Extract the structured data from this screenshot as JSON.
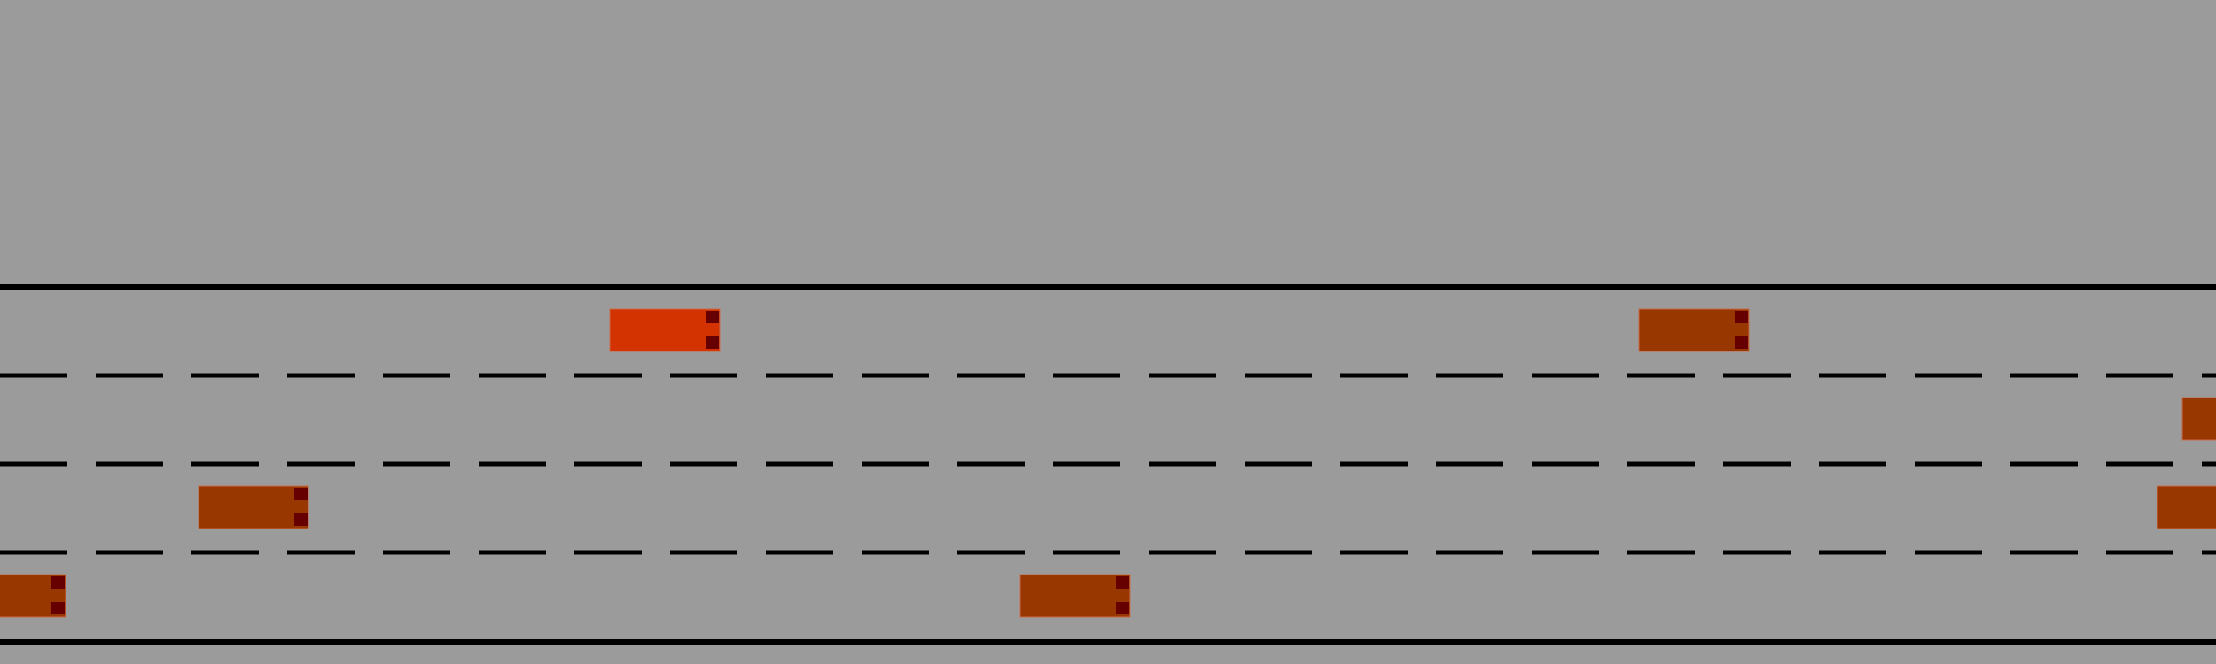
{
  "scene": {
    "type": "highway-traffic",
    "lane_count": 4,
    "colors": {
      "background": "#9b9b9b",
      "road_edge": "#000000",
      "lane_divider": "#000000",
      "ego_vehicle": "#d23300",
      "other_vehicle": "#993700",
      "tail_light": "#660000",
      "vehicle_outline": "#c86a4a"
    }
  },
  "vehicles": [
    {
      "role": "ego",
      "lane": 1
    },
    {
      "role": "other",
      "lane": 1
    },
    {
      "role": "other",
      "lane": 2
    },
    {
      "role": "other",
      "lane": 3
    },
    {
      "role": "other",
      "lane": 3
    },
    {
      "role": "other",
      "lane": 4
    },
    {
      "role": "other",
      "lane": 4
    }
  ]
}
